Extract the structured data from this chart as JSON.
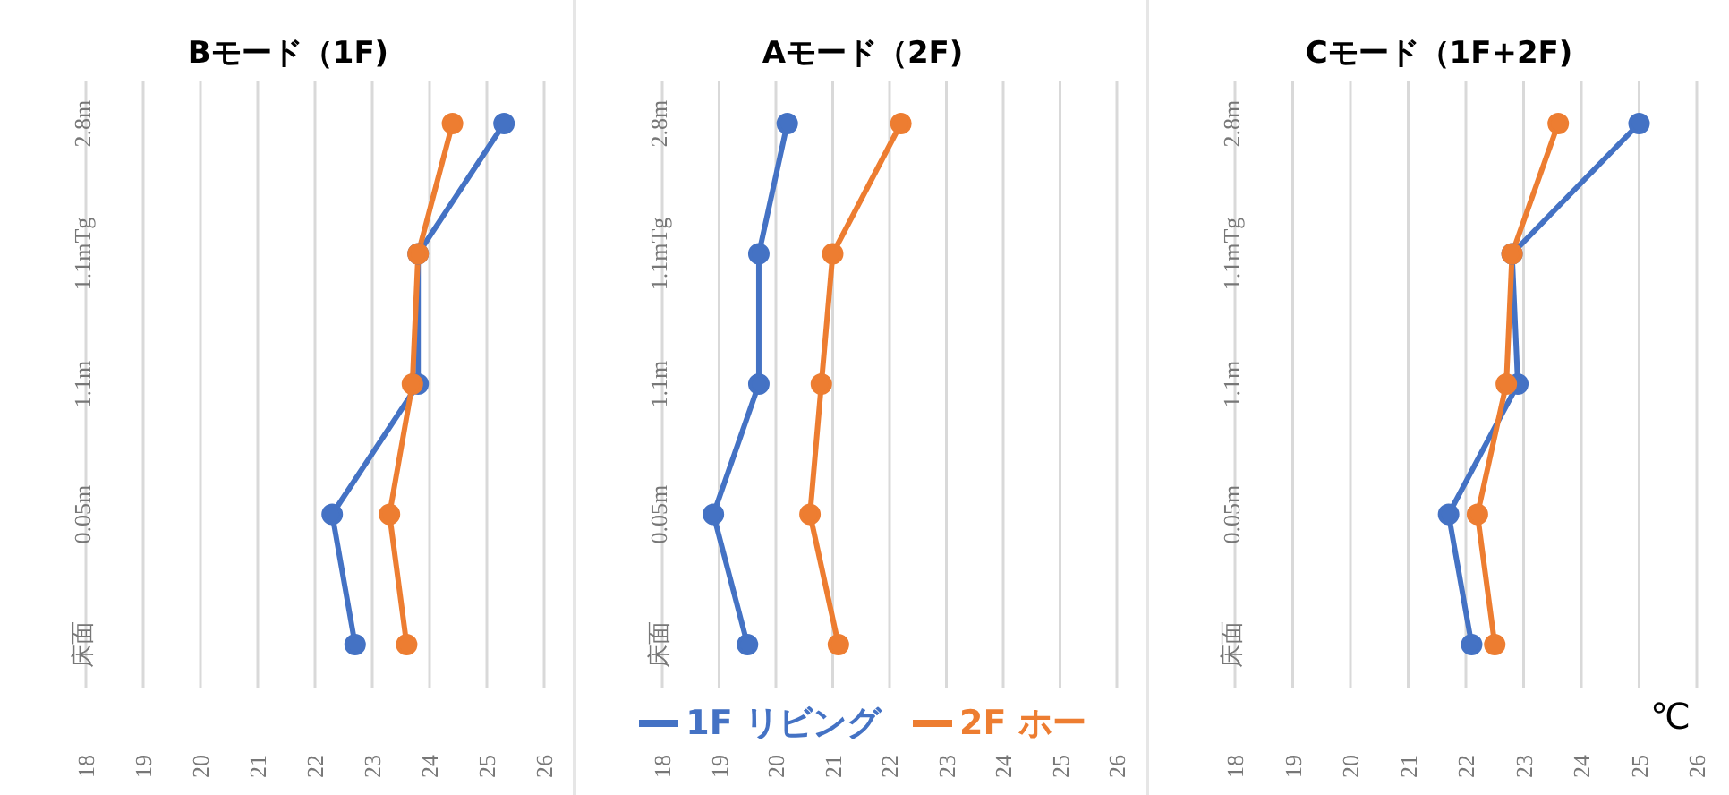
{
  "chart_data": [
    {
      "type": "line",
      "title": "Bモード（1F)",
      "orientation": "horizontal",
      "categories": [
        "2.8m",
        "1.1mTg",
        "1.1m",
        "0.05m",
        "床面"
      ],
      "xlim": [
        18,
        26
      ],
      "xticks": [
        18,
        19,
        20,
        21,
        22,
        23,
        24,
        25,
        26
      ],
      "grid": "x",
      "marker": "circle",
      "legend": false,
      "series": [
        {
          "color": "#4472c4",
          "values": [
            25.3,
            23.8,
            23.8,
            22.3,
            22.7
          ]
        },
        {
          "color": "#ed7d31",
          "values": [
            24.4,
            23.8,
            23.7,
            23.3,
            23.6
          ]
        }
      ]
    },
    {
      "type": "line",
      "title": "Aモード（2F)",
      "orientation": "horizontal",
      "categories": [
        "2.8m",
        "1.1mTg",
        "1.1m",
        "0.05m",
        "床面"
      ],
      "xlim": [
        18,
        26
      ],
      "xticks": [
        18,
        19,
        20,
        21,
        22,
        23,
        24,
        25,
        26
      ],
      "grid": "x",
      "marker": "circle",
      "legend": "bottom",
      "series": [
        {
          "name": "1F リビング",
          "color": "#4472c4",
          "values": [
            20.2,
            19.7,
            19.7,
            18.9,
            19.5
          ]
        },
        {
          "name": "2F ホー",
          "color": "#ed7d31",
          "values": [
            22.2,
            21.0,
            20.8,
            20.6,
            21.1
          ]
        }
      ]
    },
    {
      "type": "line",
      "title": "Cモード（1F+2F)",
      "xlabel": "℃",
      "orientation": "horizontal",
      "categories": [
        "2.8m",
        "1.1mTg",
        "1.1m",
        "0.05m",
        "床面"
      ],
      "xlim": [
        18,
        26
      ],
      "xticks": [
        18,
        19,
        20,
        21,
        22,
        23,
        24,
        25,
        26
      ],
      "grid": "x",
      "marker": "circle",
      "legend": false,
      "series": [
        {
          "color": "#4472c4",
          "values": [
            25.0,
            22.8,
            22.9,
            21.7,
            22.1
          ]
        },
        {
          "color": "#ed7d31",
          "values": [
            23.6,
            22.8,
            22.7,
            22.2,
            22.5
          ]
        }
      ]
    }
  ]
}
